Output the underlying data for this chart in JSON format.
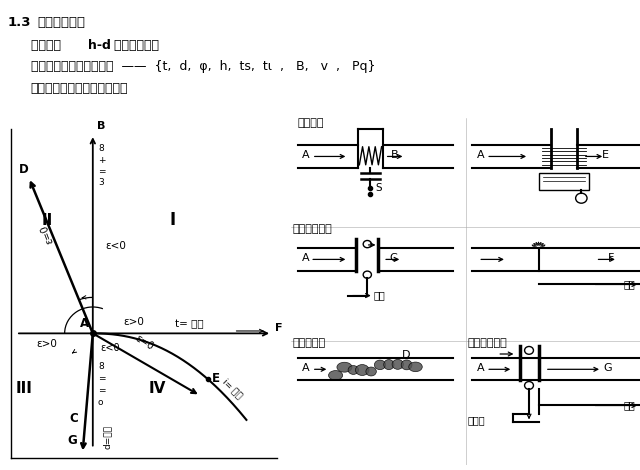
{
  "title_num": "1.3",
  "title_text": " 焓湿图的应用",
  "line1a": "湿空气的  ",
  "line1b": "h-d",
  "line1c": " 图可以表示：",
  "line2": "空气的状态和各状态参数  ——  {t,  d,  φ,  h,  ts,  tι  ,   B,   v  ,   Pq}",
  "line3": "湿空气状态的变化过程如下：",
  "bg_color": "#ffffff",
  "text_color": "#000000"
}
